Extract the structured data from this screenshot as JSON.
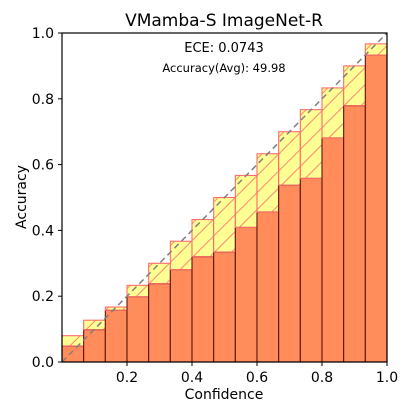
{
  "chart_data": {
    "type": "bar",
    "title": "VMamba-S  ImageNet-R",
    "xlabel": "Confidence",
    "ylabel": "Accuracy",
    "xlim": [
      0,
      1
    ],
    "ylim": [
      0,
      1
    ],
    "xticks": [
      "0.2",
      "0.4",
      "0.6",
      "0.8",
      "1.0"
    ],
    "yticks": [
      "0.0",
      "0.2",
      "0.4",
      "0.6",
      "0.8",
      "1.0"
    ],
    "annotations": {
      "ece": "ECE: 0.0743",
      "accuracy": "Accuracy(Avg): 49.98"
    },
    "bins": 15,
    "series": [
      {
        "values": [
          0.048,
          0.098,
          0.157,
          0.198,
          0.238,
          0.281,
          0.32,
          0.334,
          0.409,
          0.456,
          0.537,
          0.558,
          0.681,
          0.779,
          0.933
        ]
      },
      {
        "values": [
          0.08,
          0.127,
          0.167,
          0.233,
          0.3,
          0.367,
          0.433,
          0.5,
          0.567,
          0.633,
          0.7,
          0.767,
          0.833,
          0.9,
          0.967
        ]
      }
    ],
    "colors": {
      "accuracy_fill": "#ff8c5a",
      "accuracy_edge": "#5a1a10",
      "gap_fill": "#ffff80",
      "gap_edge": "#ff6b6b",
      "under_fill": "#f0a820",
      "diagonal": "#7f7f7f"
    },
    "grid": false
  }
}
